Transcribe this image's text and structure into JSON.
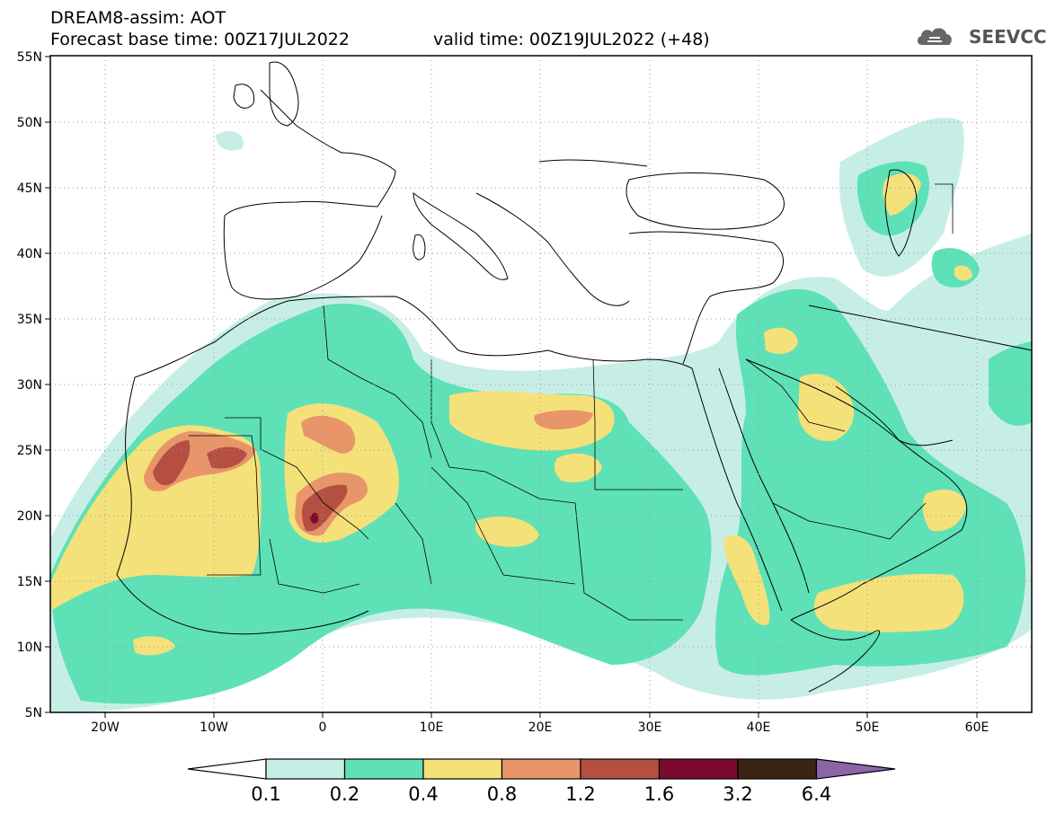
{
  "header": {
    "title": "DREAM8-assim: AOT",
    "base_time": "Forecast base time: 00Z17JUL2022",
    "valid_time": "valid time: 00Z19JUL2022 (+48)"
  },
  "logo": {
    "text": "SEEVCCC",
    "icon": "cloud-icon"
  },
  "map": {
    "lon_range": [
      -25,
      65
    ],
    "lat_range": [
      5,
      55
    ],
    "lat_ticks": [
      "5N",
      "10N",
      "15N",
      "20N",
      "25N",
      "30N",
      "35N",
      "40N",
      "45N",
      "50N",
      "55N"
    ],
    "lon_ticks": [
      "20W",
      "10W",
      "0",
      "10E",
      "20E",
      "30E",
      "40E",
      "50E",
      "60E"
    ],
    "grid": "dotted"
  },
  "colorbar": {
    "labels": [
      "0.1",
      "0.2",
      "0.4",
      "0.8",
      "1.2",
      "1.6",
      "3.2",
      "6.4"
    ],
    "colors": [
      "#c7eee6",
      "#5ee1b7",
      "#f4e17a",
      "#e9956a",
      "#b44f41",
      "#7a0a2e",
      "#3a2413",
      "#8e64a8"
    ]
  }
}
